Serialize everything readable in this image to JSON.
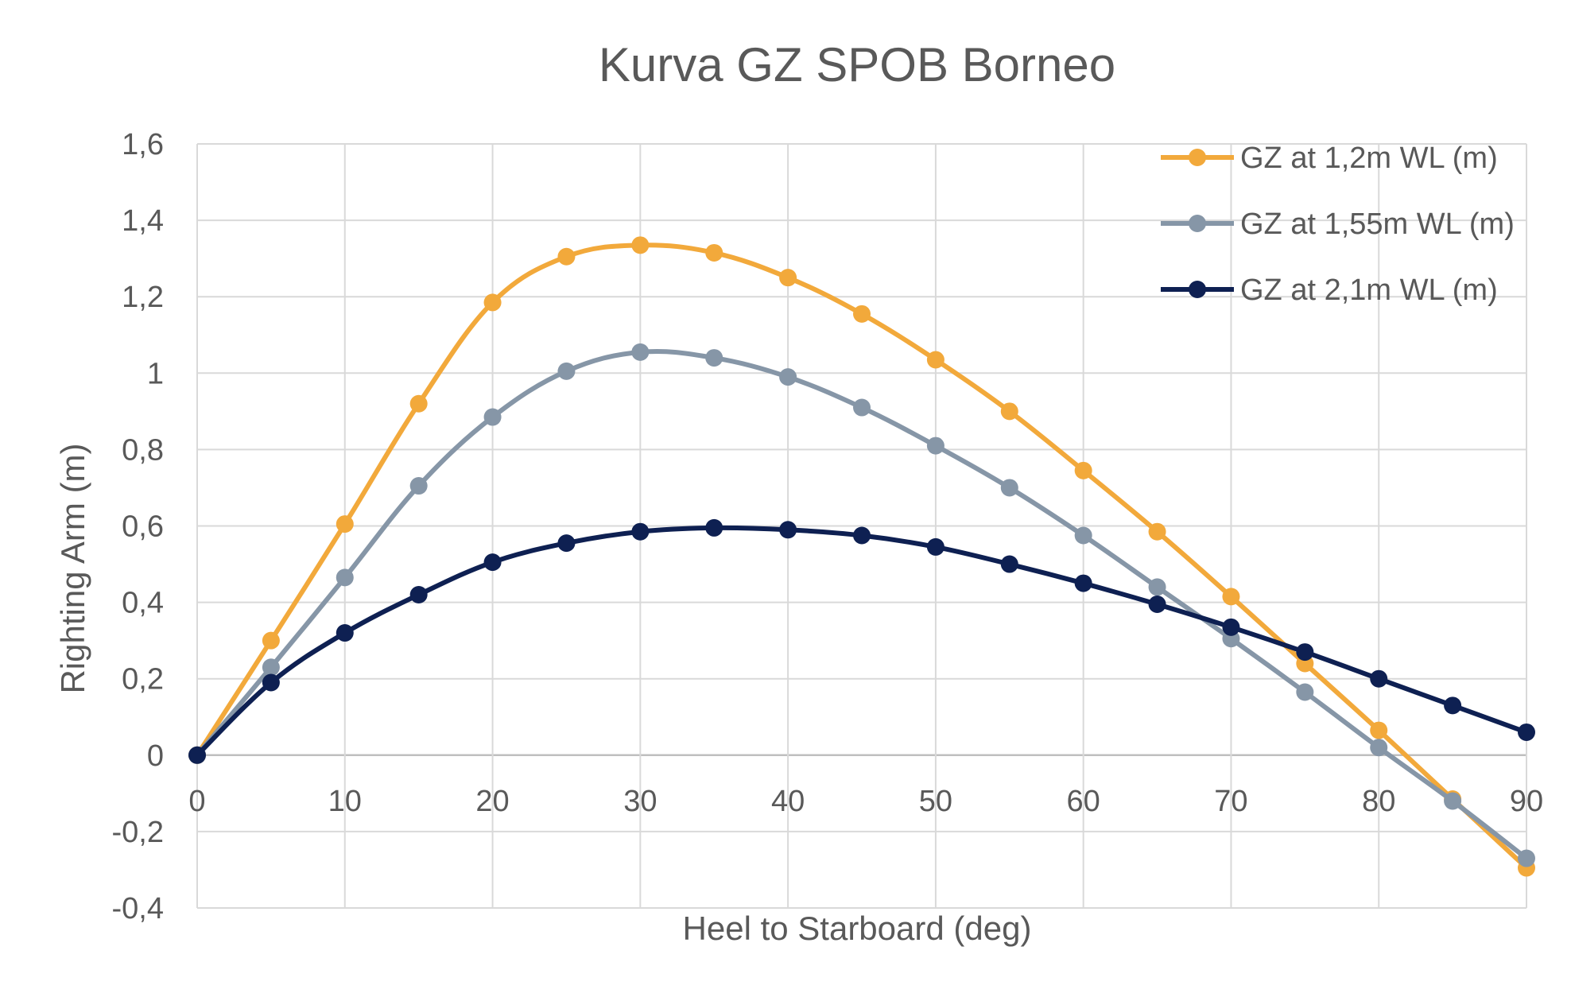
{
  "chart_data": {
    "type": "line",
    "title": "Kurva GZ SPOB Borneo",
    "xlabel": "Heel to Starboard (deg)",
    "ylabel": "Righting Arm (m)",
    "x": [
      0,
      5,
      10,
      15,
      20,
      25,
      30,
      35,
      40,
      45,
      50,
      55,
      60,
      65,
      70,
      75,
      80,
      85,
      90
    ],
    "xlim": [
      0,
      90
    ],
    "ylim": [
      -0.4,
      1.6
    ],
    "x_ticks": [
      "0",
      "10",
      "20",
      "30",
      "40",
      "50",
      "60",
      "70",
      "80",
      "90"
    ],
    "y_ticks": [
      "-0,4",
      "-0,2",
      "0",
      "0,2",
      "0,4",
      "0,6",
      "0,8",
      "1",
      "1,2",
      "1,4",
      "1,6"
    ],
    "grid": true,
    "legend_position": "top-right",
    "series": [
      {
        "name": "GZ at 1,2m WL (m)",
        "color": "#F2A93B",
        "values": [
          0,
          0.3,
          0.605,
          0.92,
          1.185,
          1.305,
          1.335,
          1.315,
          1.25,
          1.155,
          1.035,
          0.9,
          0.745,
          0.585,
          0.415,
          0.24,
          0.065,
          -0.115,
          -0.295
        ]
      },
      {
        "name": "GZ at 1,55m WL (m)",
        "color": "#8696A7",
        "values": [
          0,
          0.23,
          0.465,
          0.705,
          0.885,
          1.005,
          1.055,
          1.04,
          0.99,
          0.91,
          0.81,
          0.7,
          0.575,
          0.44,
          0.305,
          0.165,
          0.02,
          -0.12,
          -0.27
        ]
      },
      {
        "name": "GZ at 2,1m WL (m)",
        "color": "#0E2052",
        "values": [
          0,
          0.19,
          0.32,
          0.42,
          0.505,
          0.555,
          0.585,
          0.595,
          0.59,
          0.575,
          0.545,
          0.5,
          0.45,
          0.395,
          0.335,
          0.27,
          0.2,
          0.13,
          0.06
        ]
      }
    ]
  }
}
